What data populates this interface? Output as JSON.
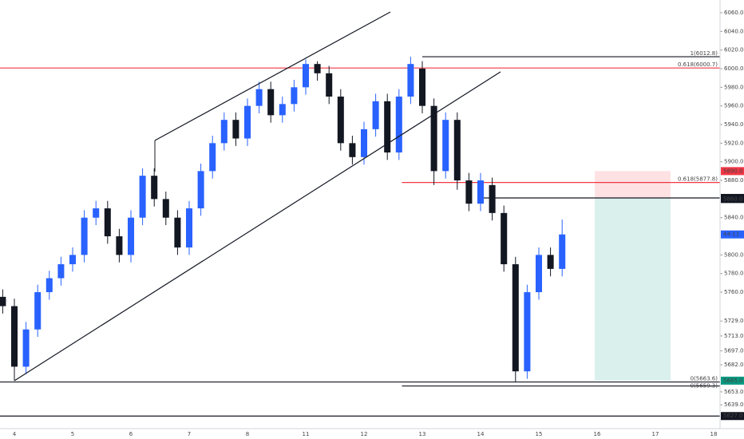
{
  "chart_data": {
    "type": "candlestick",
    "categories": [
      "4",
      "5",
      "6",
      "7",
      "8",
      "11",
      "12",
      "13",
      "14",
      "15",
      "16",
      "17",
      "18"
    ],
    "x": [
      -0.2,
      0,
      0.2,
      0.4,
      0.6,
      0.8,
      1,
      1.2,
      1.4,
      1.6,
      1.8,
      2,
      2.2,
      2.4,
      2.6,
      2.8,
      3,
      3.2,
      3.4,
      3.6,
      3.8,
      4,
      4.2,
      4.4,
      4.6,
      4.8,
      5,
      5.2,
      5.4,
      5.6,
      5.8,
      6,
      6.2,
      6.4,
      6.6,
      6.8,
      7,
      7.2,
      7.4,
      7.6,
      7.8,
      8,
      8.2,
      8.4,
      8.6,
      8.8,
      9,
      9.2,
      9.4
    ],
    "open": [
      5755,
      5745,
      5680,
      5720,
      5760,
      5775,
      5790,
      5800,
      5840,
      5850,
      5820,
      5800,
      5840,
      5885,
      5860,
      5840,
      5808,
      5850,
      5890,
      5920,
      5945,
      5925,
      5960,
      5978,
      5950,
      5962,
      5980,
      6005,
      5995,
      5970,
      5920,
      5905,
      5935,
      5965,
      5910,
      5970,
      6000,
      5960,
      5890,
      5945,
      5880,
      5855,
      5875,
      5845,
      5790,
      5675,
      5760,
      5800,
      5785
    ],
    "high": [
      5763,
      5753,
      5728,
      5768,
      5783,
      5798,
      5808,
      5848,
      5858,
      5858,
      5828,
      5848,
      5893,
      5893,
      5868,
      5848,
      5858,
      5898,
      5928,
      5953,
      5953,
      5968,
      5986,
      5986,
      5970,
      5988,
      6010,
      6008,
      6003,
      5978,
      5928,
      5943,
      5973,
      5973,
      5978,
      6012.8,
      6008,
      5968,
      5953,
      5953,
      5888,
      5888,
      5883,
      5853,
      5798,
      5768,
      5808,
      5808,
      5838
    ],
    "low": [
      5737,
      5665,
      5672,
      5712,
      5752,
      5767,
      5782,
      5792,
      5832,
      5812,
      5792,
      5792,
      5832,
      5852,
      5832,
      5800,
      5800,
      5842,
      5882,
      5912,
      5917,
      5917,
      5952,
      5942,
      5942,
      5954,
      5972,
      5987,
      5962,
      5912,
      5897,
      5897,
      5927,
      5902,
      5902,
      5962,
      5952,
      5875,
      5882,
      5870,
      5847,
      5847,
      5837,
      5782,
      5663.6,
      5667,
      5752,
      5777,
      5777
    ],
    "close": [
      5745,
      5680,
      5720,
      5760,
      5775,
      5790,
      5800,
      5840,
      5850,
      5820,
      5800,
      5840,
      5885,
      5860,
      5840,
      5808,
      5850,
      5890,
      5920,
      5945,
      5925,
      5960,
      5978,
      5950,
      5962,
      5980,
      6005,
      5995,
      5970,
      5920,
      5905,
      5935,
      5965,
      5910,
      5970,
      6005,
      5960,
      5890,
      5945,
      5880,
      5855,
      5880,
      5845,
      5790,
      5675,
      5760,
      5800,
      5785,
      5822
    ],
    "up_color": "#2962ff",
    "down_color": "#131722",
    "ylim": [
      5613.5,
      6073.7
    ],
    "yticks": [
      {
        "value": 6060,
        "label": "6060.0"
      },
      {
        "value": 6040,
        "label": "6040.0"
      },
      {
        "value": 6020,
        "label": "6020.0"
      },
      {
        "value": 6000,
        "label": "6000.0"
      },
      {
        "value": 5980,
        "label": "5980.0"
      },
      {
        "value": 5960,
        "label": "5960.0"
      },
      {
        "value": 5940,
        "label": "5940.0"
      },
      {
        "value": 5920,
        "label": "5920.0"
      },
      {
        "value": 5900,
        "label": "5900.0"
      },
      {
        "value": 5880,
        "label": "5880.0"
      },
      {
        "value": 5840,
        "label": "5840.0"
      },
      {
        "value": 5800,
        "label": "5800.0"
      },
      {
        "value": 5780,
        "label": "5780.0"
      },
      {
        "value": 5760,
        "label": "5760.0"
      },
      {
        "value": 5729,
        "label": "5729.0"
      },
      {
        "value": 5713,
        "label": "5713.0"
      },
      {
        "value": 5697,
        "label": "5697.0"
      },
      {
        "value": 5682,
        "label": "5682.0"
      },
      {
        "value": 5653,
        "label": "5653.0"
      },
      {
        "value": 5639,
        "label": "5639.0"
      }
    ],
    "grid": false,
    "levels": [
      {
        "label": "1(6012.8)",
        "value": 6012.8,
        "color": "#131722",
        "from": 7.0
      },
      {
        "label": "0.618(6000.7)",
        "value": 6000.7,
        "color": "#f23645",
        "from": -0.3
      },
      {
        "label": "0.618(5877.8)",
        "value": 5877.8,
        "color": "#f23645",
        "from": 6.65
      },
      {
        "label": "0(5663.6)",
        "value": 5663.6,
        "color": "#131722",
        "from": -0.3
      },
      {
        "label": "0(5659.3)",
        "value": 5659.3,
        "color": "#131722",
        "from": 6.65
      }
    ],
    "hlines": [
      {
        "value": 5861.2,
        "from": 8.05
      },
      {
        "value": 5627,
        "from": -0.3
      }
    ],
    "price_tags": [
      {
        "value": 5890,
        "label": "5890.0",
        "color": "#f23645"
      },
      {
        "value": 5861.2,
        "label": "5861.2",
        "color": "#131722"
      },
      {
        "value": 5860,
        "label": "5860.0",
        "color": "#131722"
      },
      {
        "value": 5822,
        "label": "44:11",
        "color": "#2962ff"
      },
      {
        "value": 5665,
        "label": "5665.0",
        "color": "#089981"
      },
      {
        "value": 5627,
        "label": "5627.0",
        "color": "#131722"
      }
    ],
    "position": {
      "stop": 5890,
      "entry": 5861.2,
      "target": 5665,
      "x": [
        9.96,
        11.26
      ]
    }
  }
}
